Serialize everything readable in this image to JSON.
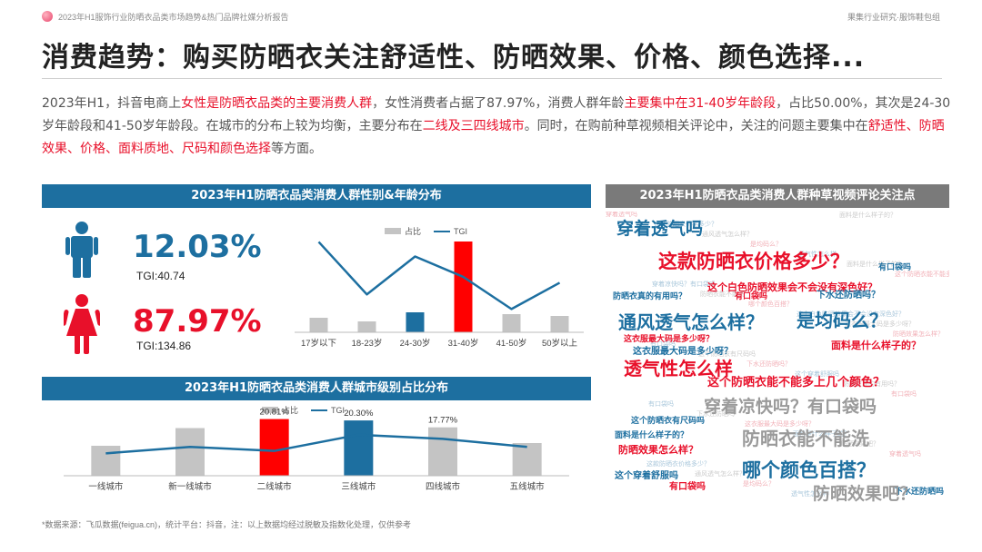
{
  "header": {
    "report_title": "2023年H1服饰行业防晒衣品类市场趋势&热门品牌社媒分析报告",
    "brand": "果集行业研究·服饰鞋包组"
  },
  "headline": "消费趋势：购买防晒衣关注舒适性、防晒效果、价格、颜色选择...",
  "intro": {
    "p1": "2023年H1，抖音电商上",
    "h1": "女性是防晒衣品类的主要消费人群",
    "p2": "，女性消费者占据了87.97%，消费人群年龄",
    "h2": "主要集中在31-40岁年龄段",
    "p3": "，占比50.00%，其次是24-30岁年龄段和41-50岁年龄段。在城市的分布上较为均衡，主要分布在",
    "h3": "二线及三四线城市",
    "p4": "。同时，在购前种草视频相关评论中，关注的问题主要集中在",
    "h4": "舒适性、防晒效果、价格、面料质地、尺码和颜色选择",
    "p5": "等方面。"
  },
  "gender_panel": {
    "title": "2023年H1防晒衣品类消费人群性别&年龄分布",
    "male": {
      "icon": "male-figure-icon",
      "pct": "12.03%",
      "tgi": "TGI:40.74",
      "color": "#1d6fa0"
    },
    "female": {
      "icon": "female-figure-icon",
      "pct": "87.97%",
      "tgi": "TGI:134.86",
      "color": "#e8102a"
    }
  },
  "chart_data": [
    {
      "type": "bar",
      "title": "2023年H1防晒衣品类消费人群性别&年龄分布",
      "legend": [
        "占比",
        "TGI"
      ],
      "legend_position": "top",
      "categories": [
        "17岁以下",
        "18-23岁",
        "24-30岁",
        "31-40岁",
        "41-50岁",
        "50岁以上"
      ],
      "series": [
        {
          "name": "占比",
          "type": "bar",
          "values": [
            8,
            6,
            11,
            50,
            10,
            9
          ],
          "colors": [
            "#c4c4c4",
            "#c4c4c4",
            "#1d6fa0",
            "#ff0000",
            "#c4c4c4",
            "#c4c4c4"
          ]
        },
        {
          "name": "TGI",
          "type": "line",
          "values": [
            170,
            80,
            145,
            110,
            55,
            100
          ],
          "color": "#1d6fa0"
        }
      ],
      "grid": false
    },
    {
      "type": "bar",
      "title": "2023年H1防晒衣品类消费人群城市级别占比分布",
      "legend": [
        "占比",
        "TGI"
      ],
      "legend_position": "top",
      "categories": [
        "一线城市",
        "新一线城市",
        "二线城市",
        "三线城市",
        "四线城市",
        "五线城市"
      ],
      "series": [
        {
          "name": "占比",
          "type": "bar",
          "values": [
            11,
            17.5,
            20.81,
            20.3,
            17.77,
            12
          ],
          "colors": [
            "#c4c4c4",
            "#c4c4c4",
            "#ff0000",
            "#1d6fa0",
            "#c4c4c4",
            "#c4c4c4"
          ]
        },
        {
          "name": "TGI",
          "type": "line",
          "values": [
            92,
            100,
            95,
            115,
            110,
            100
          ],
          "color": "#1d6fa0"
        }
      ],
      "data_labels": [
        "",
        "",
        "20.81%",
        "20.30%",
        "17.77%",
        ""
      ],
      "grid": false
    }
  ],
  "city_panel": {
    "title": "2023年H1防晒衣品类消费人群城市级别占比分布"
  },
  "cloud_panel": {
    "title": "2023年H1防晒衣品类消费人群种草视频评论关注点",
    "words": [
      {
        "text": "穿着透气吗",
        "color": "#1d6fa0"
      },
      {
        "text": "这款防晒衣价格多少？",
        "color": "#e8102a"
      },
      {
        "text": "通风透气怎么样？",
        "color": "#1d6fa0"
      },
      {
        "text": "是均码么？",
        "color": "#1d6fa0"
      },
      {
        "text": "透气性怎么样",
        "color": "#e8102a"
      },
      {
        "text": "面料是什么样子的？",
        "color": "#e8102a"
      },
      {
        "text": "这个防晒衣能不能多上几个颜色？",
        "color": "#e8102a"
      },
      {
        "text": "穿着凉快吗？有口袋吗",
        "color": "#9a9a9a"
      },
      {
        "text": "防晒衣能不能洗",
        "color": "#9a9a9a"
      },
      {
        "text": "哪个颜色百搭？",
        "color": "#1d6fa0"
      },
      {
        "text": "这个白色防晒效果会不会没有深色好？",
        "color": "#e8102a"
      },
      {
        "text": "这衣服最大码是多少呀？",
        "color": "#1d6fa0"
      },
      {
        "text": "防晒效果怎么样？",
        "color": "#e8102a"
      },
      {
        "text": "有口袋吗",
        "color": "#e8102a"
      },
      {
        "text": "这个防晒衣有尺码吗",
        "color": "#1d6fa0"
      },
      {
        "text": "下水还防晒吗？",
        "color": "#1d6fa0"
      },
      {
        "text": "这个穿着舒服吗",
        "color": "#1d6fa0"
      },
      {
        "text": "防晒衣真的有用吗？",
        "color": "#1d6fa0"
      },
      {
        "text": "有口袋吗",
        "color": "#e8102a"
      },
      {
        "text": "有口袋吗",
        "color": "#1d6fa0"
      },
      {
        "text": "下水还防晒吗",
        "color": "#1d6fa0"
      },
      {
        "text": "这衣服最大码是多少呀？",
        "color": "#e8102a"
      },
      {
        "text": "面料是什么样子的？",
        "color": "#1d6fa0"
      },
      {
        "text": "防晒效果吧？",
        "color": "#9a9a9a"
      }
    ]
  },
  "footnote": "*数据来源：飞瓜数据(feigua.cn)，统计平台：抖音，注：以上数据均经过脱敏及指数化处理，仅供参考"
}
